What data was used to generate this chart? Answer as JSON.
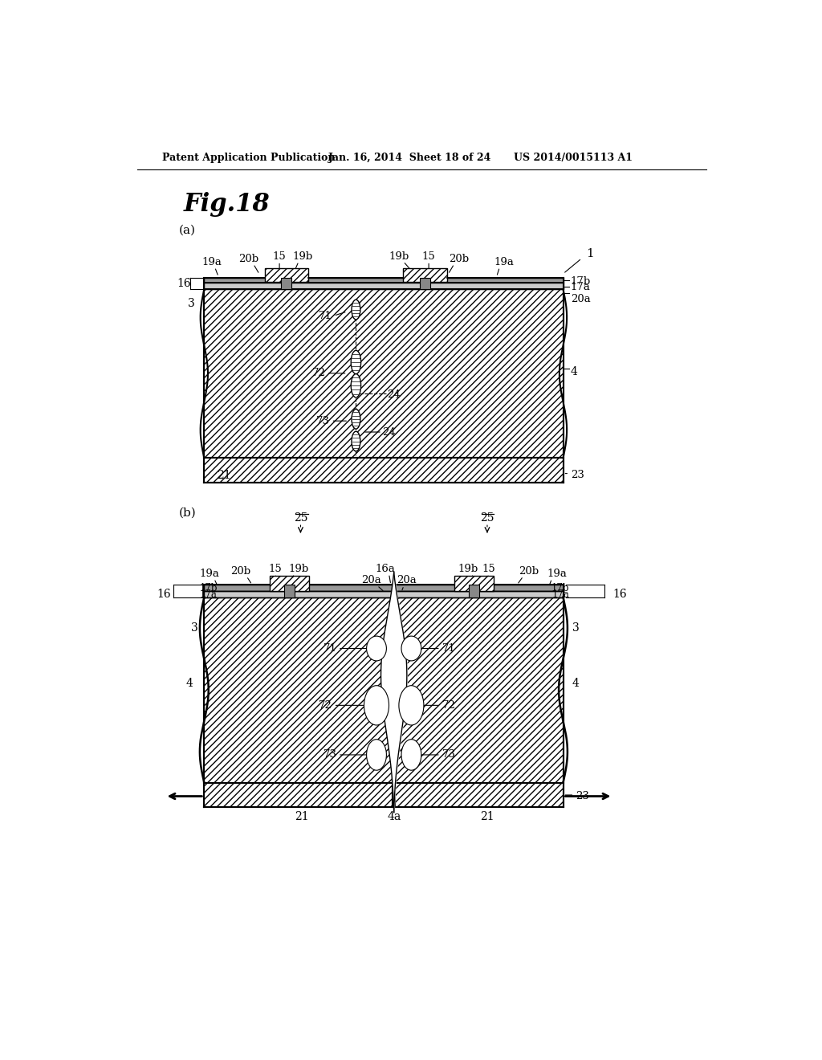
{
  "header_left": "Patent Application Publication",
  "header_mid": "Jan. 16, 2014  Sheet 18 of 24",
  "header_right": "US 2014/0015113 A1",
  "fig_title": "Fig.18",
  "bg_color": "#ffffff",
  "line_color": "#000000",
  "panel_a_label": "(a)",
  "panel_b_label": "(b)",
  "hatch": "////"
}
